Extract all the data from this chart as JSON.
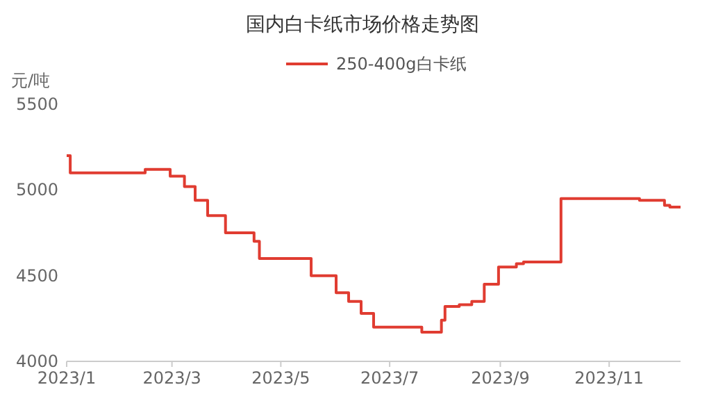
{
  "chart_data": {
    "type": "step",
    "title": "国内白卡纸市场价格走势图",
    "ylabel": "元/吨",
    "x": [
      "2023-01-01",
      "2023-01-03",
      "2023-02-14",
      "2023-02-28",
      "2023-03-08",
      "2023-03-14",
      "2023-03-21",
      "2023-03-31",
      "2023-04-16",
      "2023-04-19",
      "2023-05-18",
      "2023-06-01",
      "2023-06-08",
      "2023-06-15",
      "2023-06-22",
      "2023-07-19",
      "2023-07-30",
      "2023-08-01",
      "2023-08-09",
      "2023-08-16",
      "2023-08-23",
      "2023-08-31",
      "2023-09-10",
      "2023-09-14",
      "2023-10-05",
      "2023-11-18",
      "2023-12-02",
      "2023-12-05",
      "2023-12-11"
    ],
    "series": [
      {
        "name": "250-400g白卡纸",
        "color": "#e03c31",
        "values": [
          5200,
          5100,
          5120,
          5080,
          5020,
          4940,
          4850,
          4750,
          4700,
          4600,
          4500,
          4400,
          4350,
          4280,
          4200,
          4170,
          4240,
          4320,
          4330,
          4350,
          4450,
          4550,
          4570,
          4580,
          4950,
          4940,
          4910,
          4900,
          4900
        ]
      }
    ],
    "xlim": [
      "2023-01-01",
      "2023-12-11"
    ],
    "xticks": [
      {
        "value": "2023-01-01",
        "label": "2023/1"
      },
      {
        "value": "2023-03-01",
        "label": "2023/3"
      },
      {
        "value": "2023-05-01",
        "label": "2023/5"
      },
      {
        "value": "2023-07-01",
        "label": "2023/7"
      },
      {
        "value": "2023-09-01",
        "label": "2023/9"
      },
      {
        "value": "2023-11-01",
        "label": "2023/11"
      }
    ],
    "ylim": [
      4000,
      5500
    ],
    "yticks": [
      4000,
      4500,
      5000,
      5500
    ],
    "grid": false,
    "legend": "top"
  }
}
